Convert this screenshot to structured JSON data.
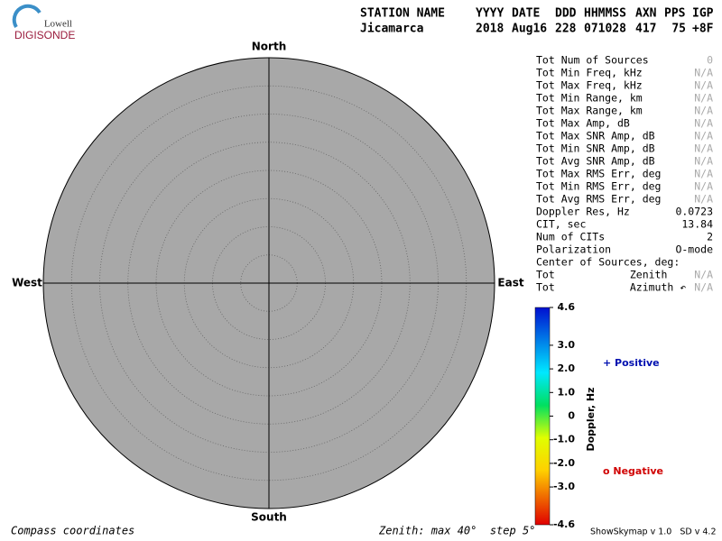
{
  "logo": {
    "top": "Lowell",
    "bottom": "DIGISONDE"
  },
  "header": {
    "labels": [
      "STATION NAME",
      "YYYY",
      "DATE",
      "DDD",
      "HHMMSS",
      "AXN",
      "PPS",
      "IGP"
    ],
    "values": [
      "Jicamarca",
      "2018",
      "Aug16",
      "228",
      "071028",
      "417",
      "75",
      "+8F"
    ]
  },
  "directions": {
    "north": "North",
    "south": "South",
    "west": "West",
    "east": "East"
  },
  "stats": [
    {
      "label": "Tot Num of Sources",
      "value": "0"
    },
    {
      "label": "Tot Min Freq, kHz",
      "value": "N/A"
    },
    {
      "label": "Tot Max Freq, kHz",
      "value": "N/A"
    },
    {
      "label": "Tot Min Range, km",
      "value": "N/A"
    },
    {
      "label": "Tot Max Range, km",
      "value": "N/A"
    },
    {
      "label": "Tot Max Amp, dB",
      "value": "N/A"
    },
    {
      "label": "Tot Max SNR Amp, dB",
      "value": "N/A"
    },
    {
      "label": "Tot Min SNR Amp, dB",
      "value": "N/A"
    },
    {
      "label": "Tot Avg SNR Amp, dB",
      "value": "N/A"
    },
    {
      "label": "Tot Max RMS Err, deg",
      "value": "N/A"
    },
    {
      "label": "Tot Min RMS Err, deg",
      "value": "N/A"
    },
    {
      "label": "Tot Avg RMS Err, deg",
      "value": "N/A"
    },
    {
      "label": "Doppler Res, Hz",
      "value": "0.0723"
    },
    {
      "label": "CIT, sec",
      "value": "13.84"
    },
    {
      "label": "Num of CITs",
      "value": "2"
    },
    {
      "label": "Polarization",
      "value": "O-mode"
    },
    {
      "label": "Center of Sources, deg:"
    },
    {
      "label": "Tot            Zenith",
      "value": "N/A"
    },
    {
      "label": "Tot            Azimuth ↶",
      "value": "N/A"
    }
  ],
  "colorbar": {
    "title": "Doppler, Hz",
    "range": [
      -4.6,
      4.6
    ],
    "ticks": [
      4.6,
      {
        "value": 3,
        "label": "3.0"
      },
      {
        "value": 2,
        "label": "2.0"
      },
      {
        "value": 1,
        "label": "1.0"
      },
      0,
      {
        "value": -1,
        "label": "-1.0"
      },
      {
        "value": -2,
        "label": "-2.0"
      },
      {
        "value": -3,
        "label": "-3.0"
      },
      -4.6
    ]
  },
  "legend": {
    "positive": "+ Positive",
    "negative": "o Negative"
  },
  "footer": {
    "left": "Compass coordinates",
    "center": "Zenith: max 40°  step 5°",
    "right": "ShowSkymap v 1.0   SD v 4.2"
  }
}
